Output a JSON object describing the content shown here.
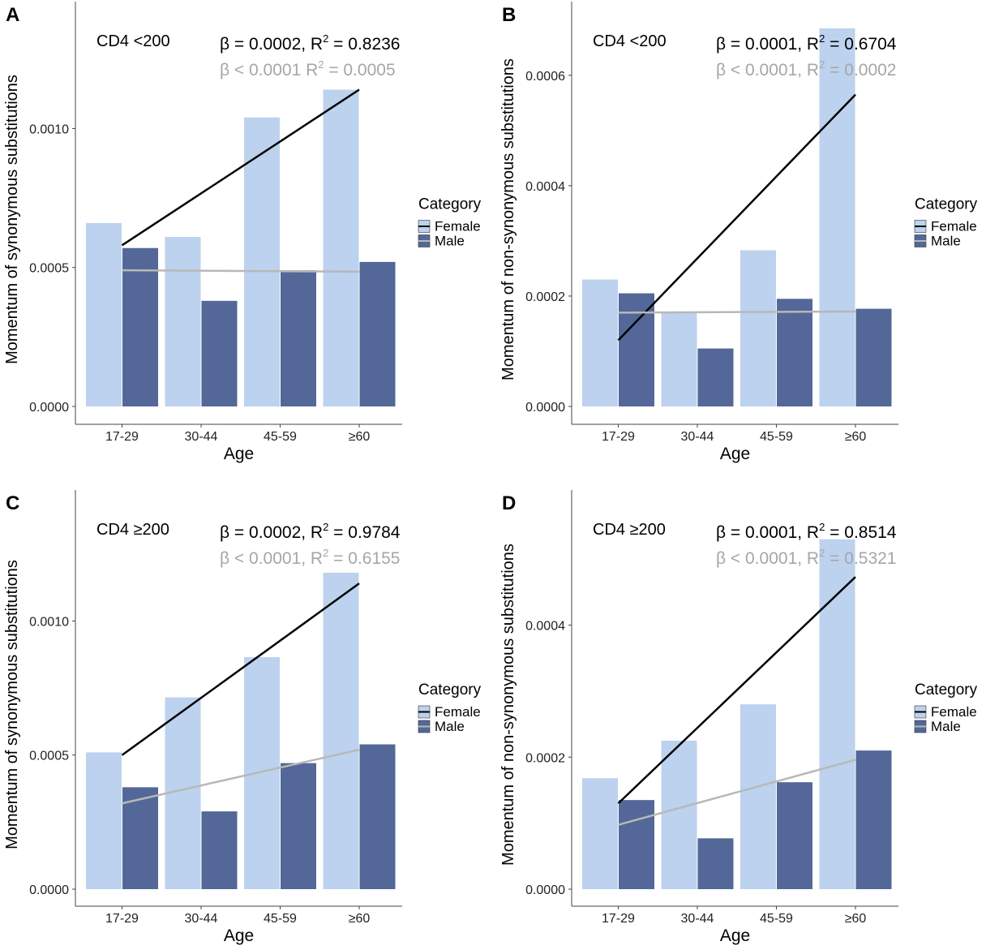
{
  "figure": {
    "legend_title": "Category",
    "legend_entries": [
      "Female",
      "Male"
    ],
    "colors": {
      "female_bar": "#bcd2ee",
      "male_bar": "#536898",
      "female_line": "#000000",
      "male_line": "#b8b8b8",
      "gray_text": "#a6a6a6"
    }
  },
  "chart_data": [
    {
      "panel_label": "A",
      "type": "bar",
      "group_label": "CD4 <200",
      "stats_female": {
        "beta": "β = 0.0002,",
        "r2": "R",
        "r2_value": "= 0.8236"
      },
      "stats_male": {
        "beta": "β < 0.0001",
        "r2": "R",
        "r2_value": "= 0.0005"
      },
      "superscript": "2",
      "xlabel": "Age",
      "ylabel": "Momentum of synonymous substitutions",
      "categories": [
        "17-29",
        "30-44",
        "45-59",
        "≥60"
      ],
      "ylim": [
        0,
        0.00141
      ],
      "yticks": [
        0,
        0.0005,
        0.001
      ],
      "ytick_labels": [
        "0.0000",
        "0.0005",
        "0.0010"
      ],
      "series": [
        {
          "name": "Female",
          "values": [
            0.00066,
            0.00061,
            0.00104,
            0.00114
          ]
        },
        {
          "name": "Male",
          "values": [
            0.00057,
            0.00038,
            0.00049,
            0.00052
          ]
        }
      ],
      "trend_lines": [
        {
          "name": "Female",
          "start": 0.00058,
          "end": 0.00114
        },
        {
          "name": "Male",
          "start": 0.00049,
          "end": 0.000485
        }
      ]
    },
    {
      "panel_label": "B",
      "type": "bar",
      "group_label": "CD4 <200",
      "stats_female": {
        "beta": "β = 0.0001,",
        "r2": "R",
        "r2_value": "= 0.6704"
      },
      "stats_male": {
        "beta": "β < 0.0001,",
        "r2": "R",
        "r2_value": "= 0.0002"
      },
      "superscript": "2",
      "xlabel": "Age",
      "ylabel": "Momentum of non-synonymous substitutions",
      "categories": [
        "17-29",
        "30-44",
        "45-59",
        "≥60"
      ],
      "ylim": [
        0,
        0.00071
      ],
      "yticks": [
        0,
        0.0002,
        0.0004,
        0.0006
      ],
      "ytick_labels": [
        "0.0000",
        "0.0002",
        "0.0004",
        "0.0006"
      ],
      "series": [
        {
          "name": "Female",
          "values": [
            0.00023,
            0.00017,
            0.000283,
            0.000685
          ]
        },
        {
          "name": "Male",
          "values": [
            0.000205,
            0.000105,
            0.000195,
            0.000177
          ]
        }
      ],
      "trend_lines": [
        {
          "name": "Female",
          "start": 0.00012,
          "end": 0.000565
        },
        {
          "name": "Male",
          "start": 0.00017,
          "end": 0.000172
        }
      ]
    },
    {
      "panel_label": "C",
      "type": "bar",
      "group_label": "CD4 ≥200",
      "stats_female": {
        "beta": "β = 0.0002,",
        "r2": "R",
        "r2_value": "= 0.9784"
      },
      "stats_male": {
        "beta": "β < 0.0001,",
        "r2": "R",
        "r2_value": "= 0.6155"
      },
      "superscript": "2",
      "xlabel": "Age",
      "ylabel": "Momentum of synonymous substitutions",
      "categories": [
        "17-29",
        "30-44",
        "45-59",
        "≥60"
      ],
      "ylim": [
        0,
        0.00144
      ],
      "yticks": [
        0,
        0.0005,
        0.001
      ],
      "ytick_labels": [
        "0.0000",
        "0.0005",
        "0.0010"
      ],
      "series": [
        {
          "name": "Female",
          "values": [
            0.00051,
            0.000715,
            0.000865,
            0.00118
          ]
        },
        {
          "name": "Male",
          "values": [
            0.00038,
            0.00029,
            0.00047,
            0.00054
          ]
        }
      ],
      "trend_lines": [
        {
          "name": "Female",
          "start": 0.0005,
          "end": 0.00114
        },
        {
          "name": "Male",
          "start": 0.00032,
          "end": 0.00052
        }
      ]
    },
    {
      "panel_label": "D",
      "type": "bar",
      "group_label": "CD4 ≥200",
      "stats_female": {
        "beta": "β = 0.0001,",
        "r2": "R",
        "r2_value": "= 0.8514"
      },
      "stats_male": {
        "beta": "β < 0.0001,",
        "r2": "R",
        "r2_value": "= 0.5321"
      },
      "superscript": "2",
      "xlabel": "Age",
      "ylabel": "Momentum of non-synonymous substitutions",
      "categories": [
        "17-29",
        "30-44",
        "45-59",
        "≥60"
      ],
      "ylim": [
        0,
        0.000585
      ],
      "yticks": [
        0,
        0.0002,
        0.0004
      ],
      "ytick_labels": [
        "0.0000",
        "0.0002",
        "0.0004"
      ],
      "series": [
        {
          "name": "Female",
          "values": [
            0.000168,
            0.000225,
            0.00028,
            0.00053
          ]
        },
        {
          "name": "Male",
          "values": [
            0.000135,
            7.7e-05,
            0.000162,
            0.00021
          ]
        }
      ],
      "trend_lines": [
        {
          "name": "Female",
          "start": 0.00013,
          "end": 0.000473
        },
        {
          "name": "Male",
          "start": 9.75e-05,
          "end": 0.000196
        }
      ]
    }
  ]
}
